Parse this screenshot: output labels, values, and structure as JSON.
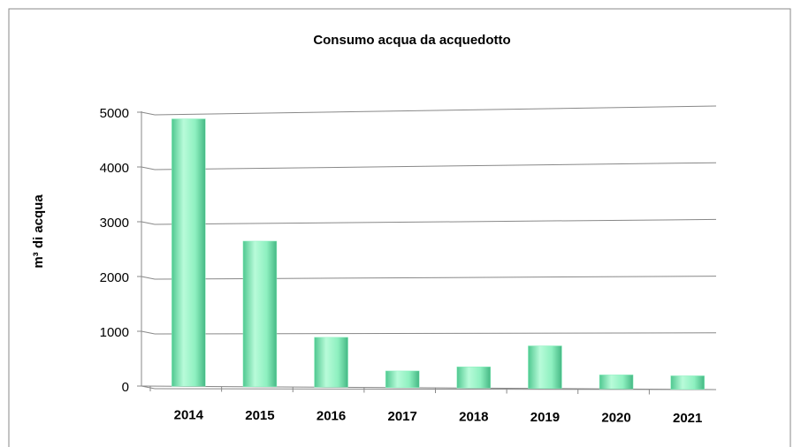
{
  "chart_data": {
    "type": "bar",
    "title": "Consumo acqua da acquedotto",
    "y_label": "m³ di acqua",
    "categories": [
      "2014",
      "2015",
      "2016",
      "2017",
      "2018",
      "2019",
      "2020",
      "2021"
    ],
    "values": [
      4870,
      2640,
      900,
      300,
      380,
      760,
      250,
      240
    ],
    "color": "#8ef0c0",
    "ylim": [
      0,
      5000
    ],
    "yticks": [
      0,
      1000,
      2000,
      3000,
      4000,
      5000
    ],
    "grid": true
  }
}
